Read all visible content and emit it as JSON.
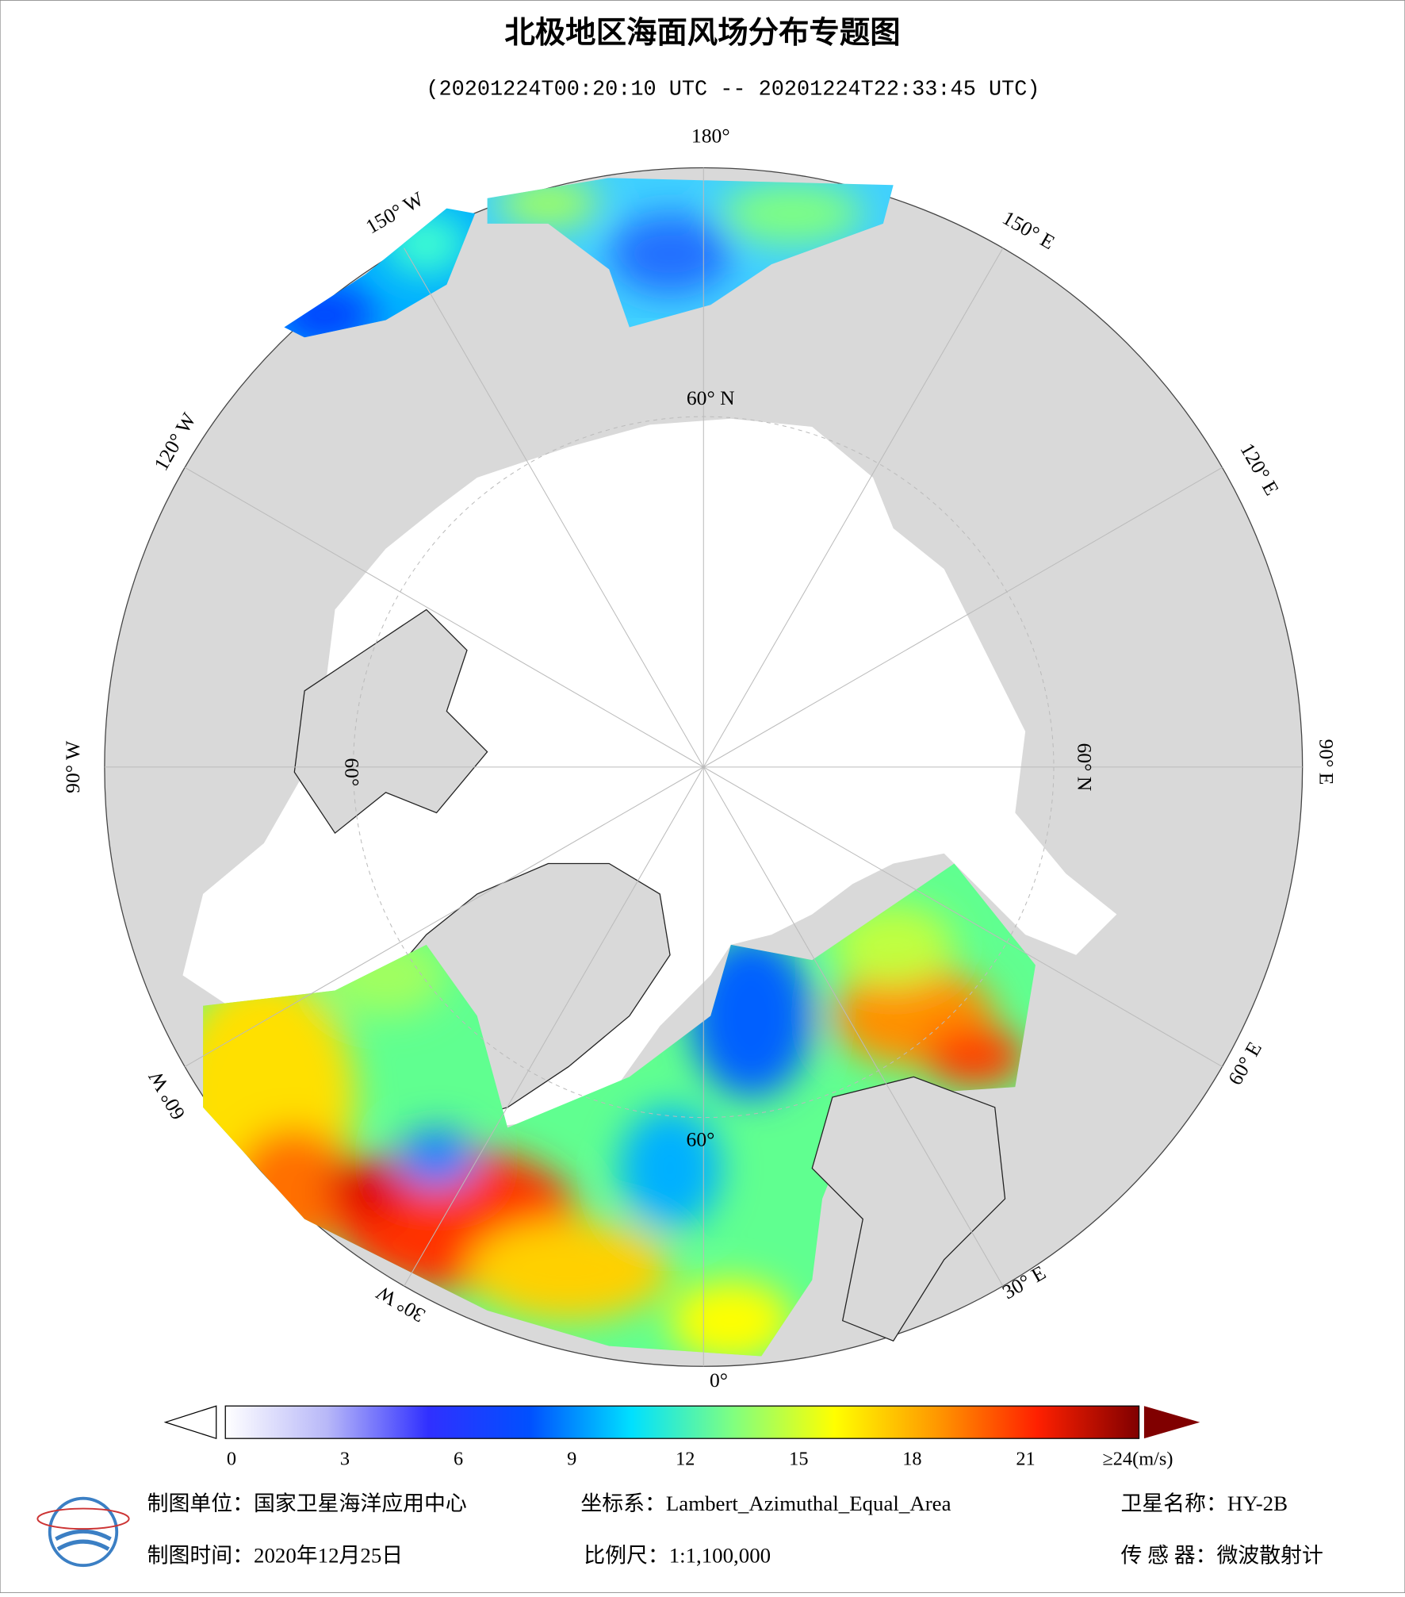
{
  "title": "北极地区海面风场分布专题图",
  "subtitle": "(20201224T00:20:10 UTC -- 20201224T22:33:45 UTC)",
  "map": {
    "labels": [
      "180°",
      "150° E",
      "120° E",
      "90° E",
      "60° E",
      "30° E",
      "0°",
      "30° W",
      "60° W",
      "90° W",
      "120° W",
      "150° W",
      "60° N",
      "60° N",
      "60°",
      "60°"
    ]
  },
  "colorbar": {
    "range": [
      0,
      24
    ],
    "ticks": [
      0,
      3,
      6,
      9,
      12,
      15,
      18,
      21,
      {
        "value": 24,
        "label": "≥24(m/s)"
      }
    ],
    "colors": [
      "#ffffff",
      "#b8b8f8",
      "#3030ff",
      "#0050ff",
      "#00e0ff",
      "#80ff80",
      "#ffff00",
      "#ff9900",
      "#ff2000",
      "#800000"
    ]
  },
  "footer": {
    "unit": "制图单位：国家卫星海洋应用中心",
    "crs": "坐标系：Lambert_Azimuthal_Equal_Area",
    "satellite": "卫星名称：HY-2B",
    "date": "制图时间：2020年12月25日",
    "scale": "比例尺：1:1,100,000",
    "sensor": "传 感 器：微波散射计"
  }
}
